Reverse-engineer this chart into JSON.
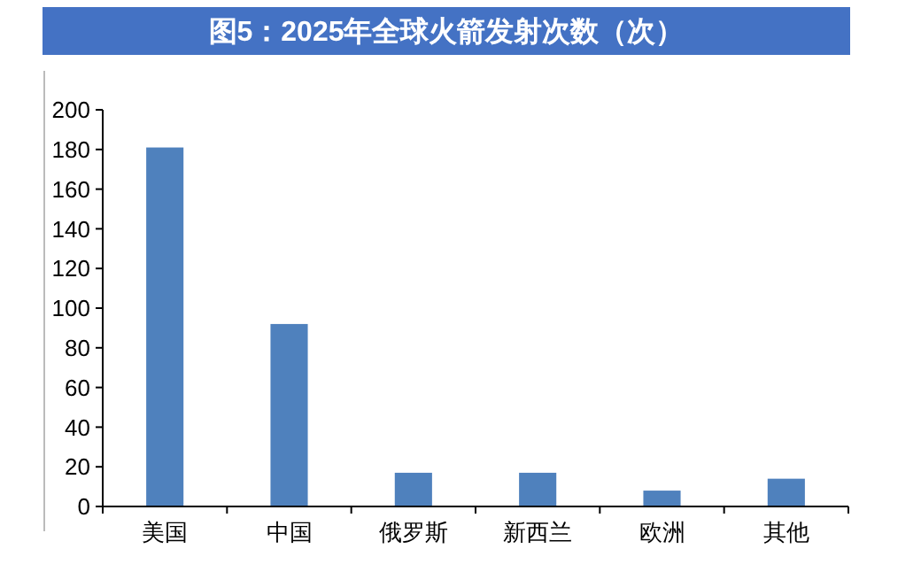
{
  "chart_data": {
    "type": "bar",
    "title": "图5：2025年全球火箭发射次数（次）",
    "categories": [
      "美国",
      "中国",
      "俄罗斯",
      "新西兰",
      "欧洲",
      "其他"
    ],
    "values": [
      181,
      92,
      17,
      17,
      8,
      14
    ],
    "color": "#4f81bd",
    "ylim": [
      0,
      200
    ],
    "yticks": [
      0,
      20,
      40,
      60,
      80,
      100,
      120,
      140,
      160,
      180,
      200
    ],
    "grid": false
  }
}
